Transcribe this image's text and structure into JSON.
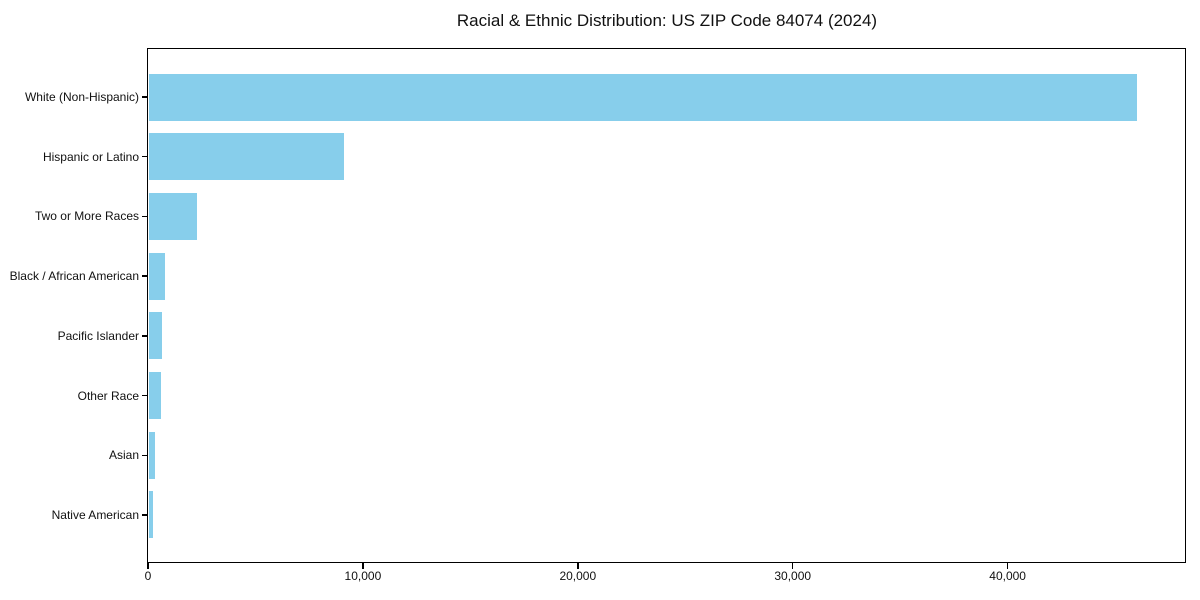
{
  "chart_data": {
    "type": "bar",
    "orientation": "horizontal",
    "title": "Racial & Ethnic Distribution: US ZIP Code 84074 (2024)",
    "categories": [
      "White (Non-Hispanic)",
      "Hispanic or Latino",
      "Two or More Races",
      "Black / African American",
      "Pacific Islander",
      "Other Race",
      "Asian",
      "Native American"
    ],
    "values": [
      46000,
      9100,
      2280,
      770,
      650,
      600,
      300,
      230
    ],
    "xlabel": "",
    "ylabel": "",
    "xlim": [
      0,
      48300
    ],
    "xticks": [
      0,
      10000,
      20000,
      30000,
      40000
    ],
    "xtick_labels": [
      "0",
      "10,000",
      "20,000",
      "30,000",
      "40,000"
    ],
    "bar_color": "#87CEEB",
    "axis_color": "#000000",
    "background": "#FFFFFF",
    "grid": false,
    "legend": "none"
  }
}
